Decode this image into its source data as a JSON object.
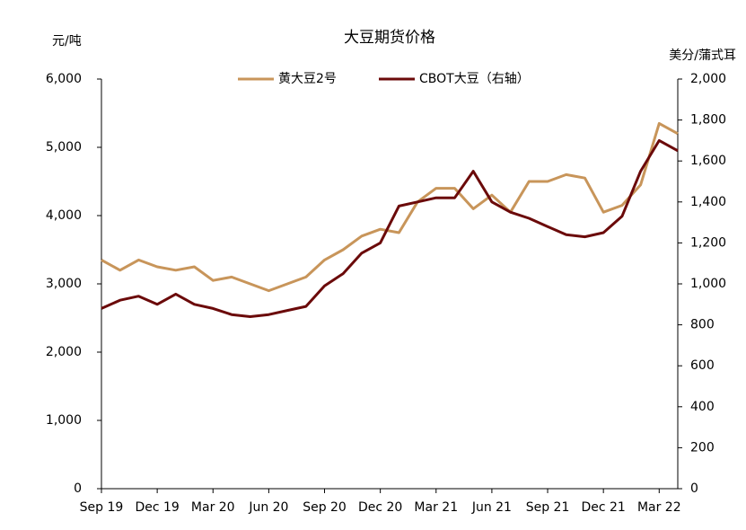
{
  "chart_data": {
    "type": "line",
    "title": "大豆期货价格",
    "y_label": "元/吨",
    "y2_label": "美分/蒲式耳",
    "categories": [
      "Sep 19",
      null,
      null,
      "Dec 19",
      null,
      null,
      "Mar 20",
      null,
      null,
      "Jun 20",
      null,
      null,
      "Sep 20",
      null,
      null,
      "Dec 20",
      null,
      null,
      "Mar 21",
      null,
      null,
      "Jun 21",
      null,
      null,
      "Sep 21",
      null,
      null,
      "Dec 21",
      null,
      null,
      "Mar 22",
      null
    ],
    "series": [
      {
        "name": "黄大豆2号",
        "color": "#c8955a",
        "values": [
          3350,
          3200,
          3350,
          3250,
          3200,
          3250,
          3050,
          3100,
          3000,
          2900,
          3000,
          3100,
          3350,
          3500,
          3700,
          3800,
          3750,
          4200,
          4400,
          4400,
          4100,
          4300,
          4050,
          4500,
          4500,
          4600,
          4550,
          4050,
          4150,
          4450,
          5350,
          5200
        ]
      },
      {
        "name": "CBOT大豆（右轴）",
        "color": "#6b0a0a",
        "axis": "y2",
        "values": [
          880,
          920,
          940,
          900,
          950,
          900,
          880,
          850,
          840,
          850,
          870,
          890,
          990,
          1050,
          1150,
          1200,
          1380,
          1400,
          1420,
          1420,
          1550,
          1400,
          1350,
          1320,
          1280,
          1240,
          1230,
          1250,
          1330,
          1550,
          1700,
          1650
        ]
      }
    ],
    "ylim": [
      0,
      6000
    ],
    "yticks": [
      0,
      {
        "value": 1000,
        "label": "1,000"
      },
      {
        "value": 2000,
        "label": "2,000"
      },
      {
        "value": 3000,
        "label": "3,000"
      },
      {
        "value": 4000,
        "label": "4,000"
      },
      {
        "value": 5000,
        "label": "5,000"
      },
      {
        "value": 6000,
        "label": "6,000"
      }
    ],
    "y2lim": [
      0,
      2000
    ],
    "y2ticks": [
      0,
      200,
      400,
      600,
      800,
      {
        "value": 1000,
        "label": "1,000"
      },
      {
        "value": 1200,
        "label": "1,200"
      },
      {
        "value": 1400,
        "label": "1,400"
      },
      {
        "value": 1600,
        "label": "1,600"
      },
      {
        "value": 1800,
        "label": "1,800"
      },
      {
        "value": 2000,
        "label": "2,000"
      }
    ],
    "grid": false,
    "legend": "top"
  }
}
